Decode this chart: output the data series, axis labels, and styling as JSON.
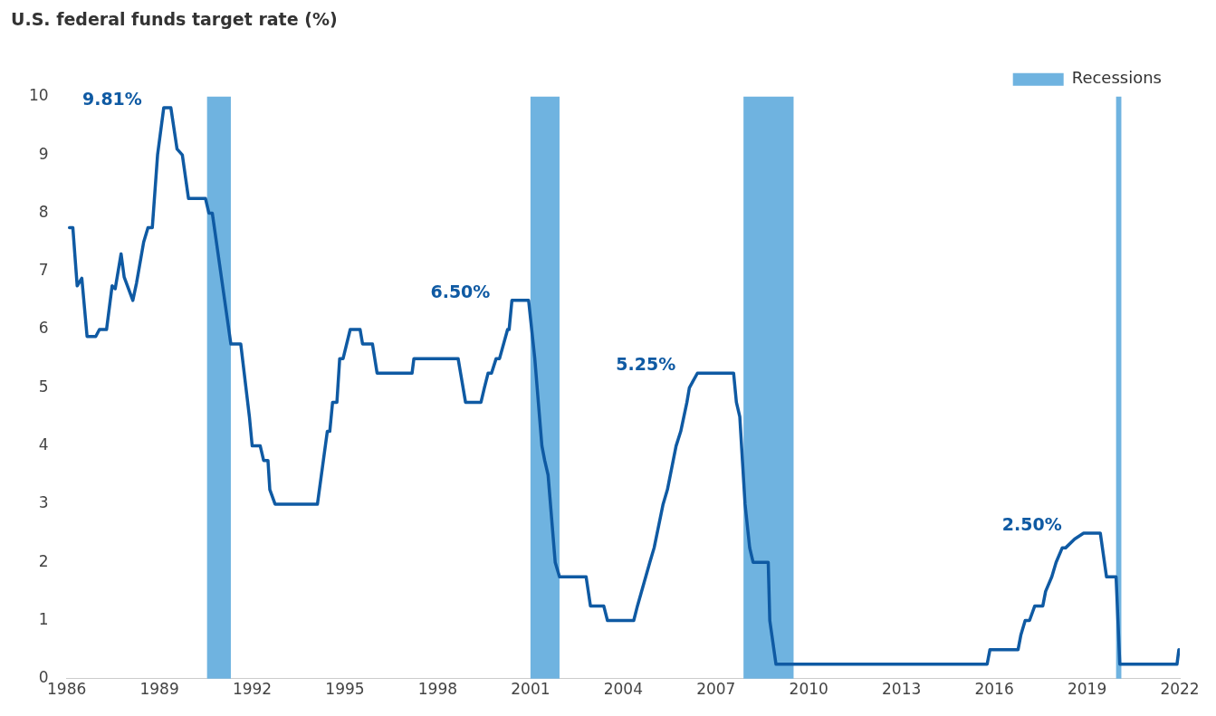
{
  "chart_data": {
    "type": "line",
    "title": "U.S. federal funds target rate (%)",
    "x": [
      1986.09,
      1986.2,
      1986.34,
      1986.49,
      1986.66,
      1986.94,
      1987.06,
      1987.29,
      1987.47,
      1987.57,
      1987.76,
      1987.86,
      1988.14,
      1988.26,
      1988.49,
      1988.63,
      1988.77,
      1988.94,
      1989.14,
      1989.37,
      1989.57,
      1989.74,
      1989.94,
      1990.49,
      1990.6,
      1990.71,
      1991.31,
      1991.63,
      1991.91,
      1992.0,
      1992.26,
      1992.37,
      1992.51,
      1992.57,
      1992.74,
      1994.11,
      1994.43,
      1994.51,
      1994.6,
      1994.74,
      1994.83,
      1994.94,
      1995.17,
      1995.49,
      1995.57,
      1995.89,
      1996.04,
      1997.17,
      1997.23,
      1998.66,
      1998.9,
      1999.4,
      1999.51,
      1999.63,
      1999.74,
      1999.89,
      2000.0,
      2000.26,
      2000.31,
      2000.4,
      2000.94,
      2001.14,
      2001.37,
      2001.46,
      2001.57,
      2001.8,
      2001.94,
      2002.8,
      2002.94,
      2003.37,
      2003.49,
      2004.34,
      2004.46,
      2004.86,
      2005.0,
      2005.29,
      2005.43,
      2005.71,
      2005.86,
      2006.06,
      2006.14,
      2006.4,
      2007.57,
      2007.66,
      2007.77,
      2007.94,
      2008.09,
      2008.2,
      2008.69,
      2008.74,
      2008.94,
      2015.77,
      2015.86,
      2016.77,
      2016.86,
      2017.0,
      2017.14,
      2017.31,
      2017.57,
      2017.66,
      2017.86,
      2018.0,
      2018.2,
      2018.31,
      2018.6,
      2018.89,
      2019.43,
      2019.63,
      2019.94,
      2020.06,
      2021.91,
      2021.97
    ],
    "series": [
      {
        "color": "#0f5aa3",
        "values": [
          7.75,
          7.75,
          6.75,
          6.88,
          5.88,
          5.88,
          6.0,
          6.0,
          6.75,
          6.7,
          7.3,
          6.9,
          6.5,
          6.8,
          7.5,
          7.75,
          7.75,
          9.0,
          9.81,
          9.81,
          9.1,
          9.0,
          8.25,
          8.25,
          8.0,
          8.0,
          5.75,
          5.75,
          4.5,
          4.0,
          4.0,
          3.75,
          3.75,
          3.25,
          3.0,
          3.0,
          4.25,
          4.25,
          4.75,
          4.75,
          5.5,
          5.5,
          6.0,
          6.0,
          5.75,
          5.75,
          5.25,
          5.25,
          5.5,
          5.5,
          4.75,
          4.75,
          5.0,
          5.25,
          5.25,
          5.5,
          5.5,
          6.0,
          6.0,
          6.5,
          6.5,
          5.5,
          4.0,
          3.75,
          3.5,
          2.0,
          1.75,
          1.75,
          1.25,
          1.25,
          1.0,
          1.0,
          1.25,
          2.0,
          2.25,
          3.0,
          3.25,
          4.0,
          4.25,
          4.75,
          5.0,
          5.25,
          5.25,
          4.75,
          4.5,
          3.0,
          2.25,
          2.0,
          2.0,
          1.0,
          0.25,
          0.25,
          0.5,
          0.5,
          0.75,
          1.0,
          1.0,
          1.25,
          1.25,
          1.5,
          1.75,
          2.0,
          2.25,
          2.25,
          2.4,
          2.5,
          2.5,
          1.75,
          1.75,
          0.25,
          0.25,
          0.5
        ]
      }
    ],
    "xlim": [
      1986,
      2022
    ],
    "xticks": [
      1986,
      1989,
      1992,
      1995,
      1998,
      2001,
      2004,
      2007,
      2010,
      2013,
      2016,
      2019,
      2022
    ],
    "ylim": [
      0,
      10
    ],
    "yticks": [
      0,
      1,
      2,
      3,
      4,
      5,
      6,
      7,
      8,
      9,
      10
    ],
    "grid": false,
    "marker": "none",
    "line_style": "solid",
    "legend": "top right",
    "bands": [
      {
        "axis": "x",
        "from": 1990.54,
        "to": 1991.31,
        "label": "Recessions",
        "color": "#6fb3e0"
      },
      {
        "axis": "x",
        "from": 2001.0,
        "to": 2001.94,
        "color": "#6fb3e0"
      },
      {
        "axis": "x",
        "from": 2007.89,
        "to": 2009.51,
        "color": "#6fb3e0"
      },
      {
        "axis": "x",
        "from": 2019.94,
        "to": 2020.11,
        "color": "#6fb3e0"
      }
    ],
    "annotations": [
      {
        "text": "9.81%",
        "x": 1989.14,
        "y": 9.81
      },
      {
        "text": "6.50%",
        "x": 2000.4,
        "y": 6.5
      },
      {
        "text": "5.25%",
        "x": 2006.4,
        "y": 5.25
      },
      {
        "text": "2.50%",
        "x": 2018.89,
        "y": 2.5
      }
    ]
  }
}
